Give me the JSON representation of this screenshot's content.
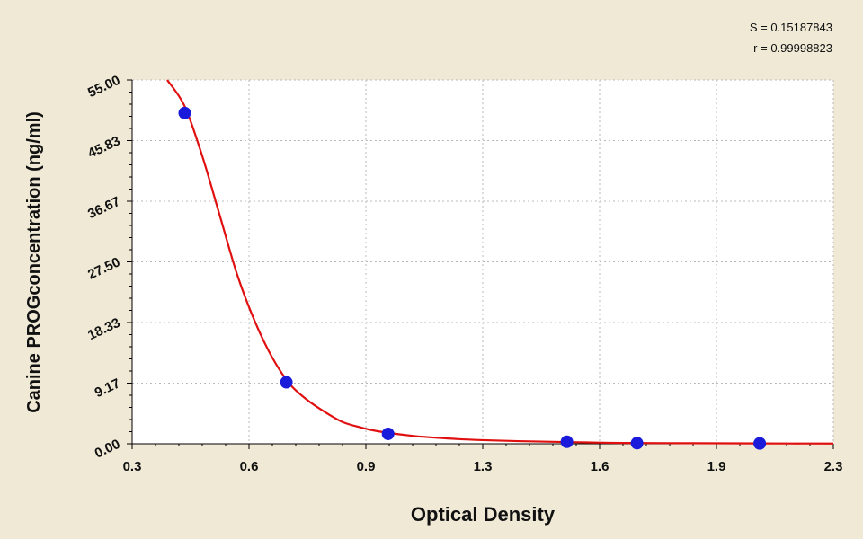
{
  "stats": {
    "s_label": "S = 0.15187843",
    "r_label": "r = 0.99998823"
  },
  "chart_data": {
    "type": "scatter",
    "title": "",
    "xlabel": "Optical Density",
    "ylabel": "Canine PROGconcentration (ng/ml)",
    "xlim": [
      0.3,
      2.3
    ],
    "ylim": [
      0,
      55
    ],
    "x_ticks": [
      "0.3",
      "0.6",
      "0.9",
      "1.3",
      "1.6",
      "1.9",
      "2.3"
    ],
    "y_ticks": [
      "0.00",
      "9.17",
      "18.33",
      "27.50",
      "36.67",
      "45.83",
      "55.00"
    ],
    "grid": true,
    "points": [
      {
        "x": 0.45,
        "y": 50
      },
      {
        "x": 0.74,
        "y": 9.3
      },
      {
        "x": 1.03,
        "y": 1.5
      },
      {
        "x": 1.54,
        "y": 0.3
      },
      {
        "x": 1.74,
        "y": 0.1
      },
      {
        "x": 2.09,
        "y": 0.05
      }
    ],
    "fit_curve": [
      {
        "x": 0.4,
        "y": 55.0
      },
      {
        "x": 0.45,
        "y": 51.0
      },
      {
        "x": 0.5,
        "y": 43.5
      },
      {
        "x": 0.55,
        "y": 34.5
      },
      {
        "x": 0.6,
        "y": 25.5
      },
      {
        "x": 0.65,
        "y": 18.5
      },
      {
        "x": 0.7,
        "y": 13.0
      },
      {
        "x": 0.75,
        "y": 9.0
      },
      {
        "x": 0.8,
        "y": 6.6
      },
      {
        "x": 0.85,
        "y": 4.8
      },
      {
        "x": 0.9,
        "y": 3.3
      },
      {
        "x": 0.95,
        "y": 2.5
      },
      {
        "x": 1.0,
        "y": 1.9
      },
      {
        "x": 1.1,
        "y": 1.2
      },
      {
        "x": 1.2,
        "y": 0.8
      },
      {
        "x": 1.3,
        "y": 0.55
      },
      {
        "x": 1.4,
        "y": 0.4
      },
      {
        "x": 1.5,
        "y": 0.3
      },
      {
        "x": 1.6,
        "y": 0.2
      },
      {
        "x": 1.7,
        "y": 0.12
      },
      {
        "x": 1.9,
        "y": 0.08
      },
      {
        "x": 2.1,
        "y": 0.05
      },
      {
        "x": 2.3,
        "y": 0.03
      }
    ],
    "colors": {
      "points": "#1a1adb",
      "curve": "#e01010",
      "grid": "#b8b8b8",
      "plot_bg": "#ffffff",
      "page_bg": "#efe9d6"
    }
  }
}
